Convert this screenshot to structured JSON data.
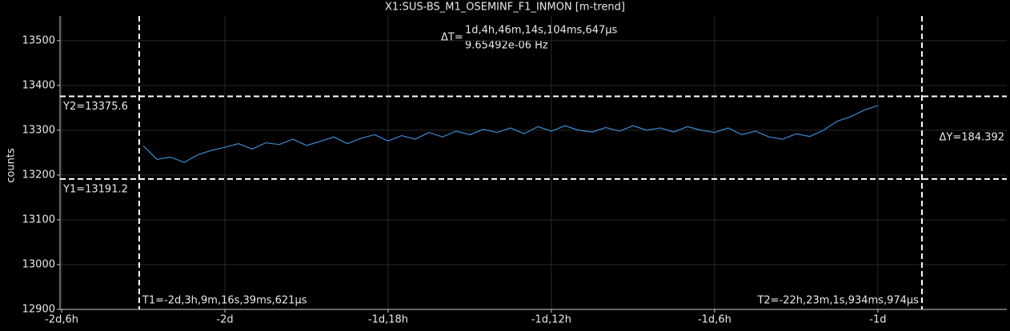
{
  "chart_data": {
    "type": "line",
    "title": "X1:SUS-BS_M1_OSEMINF_F1_INMON [m-trend]",
    "y_label": "counts",
    "x": [
      -51.0,
      -50.5,
      -50.0,
      -49.5,
      -49.0,
      -48.5,
      -48.0,
      -47.5,
      -47.0,
      -46.5,
      -46.0,
      -45.5,
      -45.0,
      -44.5,
      -44.0,
      -43.5,
      -43.0,
      -42.5,
      -42.0,
      -41.5,
      -41.0,
      -40.5,
      -40.0,
      -39.5,
      -39.0,
      -38.5,
      -38.0,
      -37.5,
      -37.0,
      -36.5,
      -36.0,
      -35.5,
      -35.0,
      -34.5,
      -34.0,
      -33.5,
      -33.0,
      -32.5,
      -32.0,
      -31.5,
      -31.0,
      -30.5,
      -30.0,
      -29.5,
      -29.0,
      -28.5,
      -28.0,
      -27.5,
      -27.0,
      -26.5,
      -26.0,
      -25.5,
      -25.0,
      -24.5,
      -24.0
    ],
    "series": [
      {
        "name": "X1:SUS-BS_M1_OSEMINF_F1_INMON",
        "color": "#3a8ad0",
        "values": [
          13265,
          13235,
          13240,
          13228,
          13245,
          13255,
          13262,
          13270,
          13258,
          13272,
          13268,
          13280,
          13266,
          13275,
          13285,
          13270,
          13282,
          13290,
          13276,
          13288,
          13280,
          13295,
          13285,
          13298,
          13290,
          13302,
          13295,
          13305,
          13292,
          13308,
          13298,
          13310,
          13300,
          13296,
          13306,
          13298,
          13310,
          13300,
          13305,
          13296,
          13308,
          13300,
          13295,
          13305,
          13290,
          13298,
          13285,
          13280,
          13292,
          13286,
          13300,
          13320,
          13330,
          13345,
          13355
        ]
      }
    ],
    "xlim": [
      -54.06,
      -19.26
    ],
    "xticks": [
      {
        "value": -54,
        "label": "-2d,6h"
      },
      {
        "value": -48,
        "label": "-2d"
      },
      {
        "value": -42,
        "label": "-1d,18h"
      },
      {
        "value": -36,
        "label": "-1d,12h"
      },
      {
        "value": -30,
        "label": "-1d,6h"
      },
      {
        "value": -24,
        "label": "-1d"
      }
    ],
    "ylim": [
      12900,
      13555
    ],
    "yticks": [
      12900,
      13000,
      13100,
      13200,
      13300,
      13400,
      13500
    ],
    "grid": true,
    "cursors": {
      "t1": {
        "value": -51.15,
        "label": "T1=-2d,3h,9m,16s,39ms,621µs"
      },
      "t2": {
        "value": -22.38,
        "label": "T2=-22h,23m,1s,934ms,974µs"
      },
      "y1": {
        "value": 13191.2,
        "label": "Y1=13191.2"
      },
      "y2": {
        "value": 13375.6,
        "label": "Y2=13375.6"
      }
    },
    "delta_t_label": "ΔT=",
    "delta_t": "1d,4h,46m,14s,104ms,647µs",
    "delta_f": "9.65492e-06 Hz",
    "delta_y": "ΔY=184.392"
  }
}
